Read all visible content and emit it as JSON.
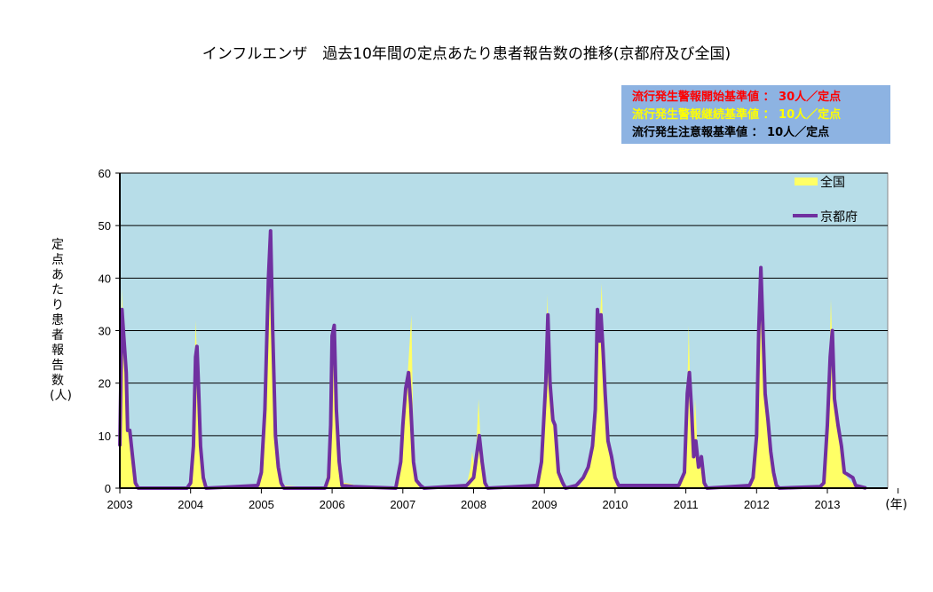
{
  "chart_data": {
    "type": "area+line",
    "title": "インフルエンザ　過去10年間の定点あたり患者報告数の推移(京都府及び全国)",
    "ylabel": "定点あたり患者報告数(人)",
    "xlabel": "(年)",
    "ylim": [
      0,
      60
    ],
    "xlim": [
      2003,
      2013.85
    ],
    "yticks": [
      "0",
      "10",
      "20",
      "30",
      "40",
      "50",
      "60"
    ],
    "xticks": [
      "2003",
      "2004",
      "2005",
      "2006",
      "2007",
      "2008",
      "2009",
      "2010",
      "2011",
      "2012",
      "2013"
    ],
    "grid": true,
    "legend_position": "top-right",
    "thresholds": [
      {
        "label": "流行発生警報開始基準値 ： 30人／定点",
        "color": "#ff0000"
      },
      {
        "label": "流行発生警報継続基準値 ： 10人／定点",
        "color": "#ffff00"
      },
      {
        "label": "流行発生注意報基準値 ： 10人／定点",
        "color": "#000000"
      }
    ],
    "series": [
      {
        "name": "全国",
        "type": "area",
        "color": "#ffff66",
        "points": [
          [
            2003,
            8
          ],
          [
            2003.03,
            38
          ],
          [
            2003.06,
            25
          ],
          [
            2003.1,
            20
          ],
          [
            2003.14,
            10
          ],
          [
            2003.18,
            4
          ],
          [
            2003.22,
            1
          ],
          [
            2003.26,
            0
          ],
          [
            2003.95,
            0
          ],
          [
            2004,
            1
          ],
          [
            2004.04,
            10
          ],
          [
            2004.07,
            32
          ],
          [
            2004.1,
            22
          ],
          [
            2004.14,
            7
          ],
          [
            2004.18,
            2
          ],
          [
            2004.22,
            0
          ],
          [
            2004.95,
            0.5
          ],
          [
            2005,
            3
          ],
          [
            2005.05,
            16
          ],
          [
            2005.1,
            42
          ],
          [
            2005.12,
            48
          ],
          [
            2005.15,
            30
          ],
          [
            2005.2,
            9
          ],
          [
            2005.24,
            3
          ],
          [
            2005.3,
            0.5
          ],
          [
            2005.9,
            0
          ],
          [
            2005.96,
            6
          ],
          [
            2006,
            28
          ],
          [
            2006.02,
            30
          ],
          [
            2006.06,
            13
          ],
          [
            2006.1,
            4
          ],
          [
            2006.14,
            1
          ],
          [
            2006.2,
            1
          ],
          [
            2006.35,
            0.5
          ],
          [
            2006.9,
            0
          ],
          [
            2006.97,
            4
          ],
          [
            2007.02,
            12
          ],
          [
            2007.06,
            20
          ],
          [
            2007.12,
            33
          ],
          [
            2007.15,
            8
          ],
          [
            2007.19,
            2
          ],
          [
            2007.25,
            0.5
          ],
          [
            2007.3,
            0
          ],
          [
            2007.9,
            0.5
          ],
          [
            2007.96,
            4
          ],
          [
            2007.98,
            7
          ],
          [
            2008.02,
            3
          ],
          [
            2008.07,
            17
          ],
          [
            2008.1,
            8
          ],
          [
            2008.14,
            4
          ],
          [
            2008.18,
            1
          ],
          [
            2008.22,
            0
          ],
          [
            2008.9,
            0.5
          ],
          [
            2008.96,
            5
          ],
          [
            2009.02,
            22
          ],
          [
            2009.04,
            37
          ],
          [
            2009.07,
            22
          ],
          [
            2009.1,
            12
          ],
          [
            2009.13,
            16
          ],
          [
            2009.17,
            6
          ],
          [
            2009.2,
            4
          ],
          [
            2009.26,
            1
          ],
          [
            2009.3,
            0
          ],
          [
            2009.5,
            0.5
          ],
          [
            2009.6,
            3
          ],
          [
            2009.68,
            8
          ],
          [
            2009.72,
            16
          ],
          [
            2009.75,
            28
          ],
          [
            2009.78,
            30
          ],
          [
            2009.81,
            39
          ],
          [
            2009.84,
            24
          ],
          [
            2009.88,
            12
          ],
          [
            2009.93,
            6
          ],
          [
            2010,
            2
          ],
          [
            2010.05,
            0.5
          ],
          [
            2010.9,
            0.5
          ],
          [
            2010.98,
            4
          ],
          [
            2011.02,
            18
          ],
          [
            2011.04,
            31
          ],
          [
            2011.07,
            14
          ],
          [
            2011.1,
            8
          ],
          [
            2011.13,
            17
          ],
          [
            2011.17,
            6
          ],
          [
            2011.22,
            4
          ],
          [
            2011.26,
            1
          ],
          [
            2011.3,
            0
          ],
          [
            2011.9,
            0.5
          ],
          [
            2011.95,
            3
          ],
          [
            2012,
            12
          ],
          [
            2012.03,
            28
          ],
          [
            2012.06,
            37
          ],
          [
            2012.09,
            28
          ],
          [
            2012.12,
            22
          ],
          [
            2012.16,
            12
          ],
          [
            2012.2,
            6
          ],
          [
            2012.24,
            2
          ],
          [
            2012.3,
            0
          ],
          [
            2012.9,
            0.3
          ],
          [
            2012.96,
            3
          ],
          [
            2013.02,
            20
          ],
          [
            2013.05,
            36
          ],
          [
            2013.08,
            22
          ],
          [
            2013.12,
            14
          ],
          [
            2013.17,
            10
          ],
          [
            2013.22,
            4
          ],
          [
            2013.28,
            2
          ],
          [
            2013.35,
            1
          ],
          [
            2013.45,
            0
          ],
          [
            2013.55,
            0
          ]
        ]
      },
      {
        "name": "京都府",
        "type": "line",
        "color": "#7030a0",
        "points": [
          [
            2003,
            8
          ],
          [
            2003.03,
            34
          ],
          [
            2003.06,
            28
          ],
          [
            2003.09,
            22
          ],
          [
            2003.11,
            11
          ],
          [
            2003.14,
            11
          ],
          [
            2003.18,
            6
          ],
          [
            2003.22,
            1
          ],
          [
            2003.26,
            0
          ],
          [
            2003.95,
            0
          ],
          [
            2004,
            1
          ],
          [
            2004.04,
            8
          ],
          [
            2004.07,
            25
          ],
          [
            2004.09,
            27
          ],
          [
            2004.11,
            20
          ],
          [
            2004.14,
            8
          ],
          [
            2004.18,
            2
          ],
          [
            2004.22,
            0
          ],
          [
            2004.95,
            0.5
          ],
          [
            2005,
            3
          ],
          [
            2005.05,
            15
          ],
          [
            2005.1,
            40
          ],
          [
            2005.13,
            49
          ],
          [
            2005.16,
            30
          ],
          [
            2005.2,
            10
          ],
          [
            2005.24,
            4
          ],
          [
            2005.28,
            1
          ],
          [
            2005.32,
            0
          ],
          [
            2005.9,
            0
          ],
          [
            2005.95,
            2
          ],
          [
            2005.98,
            12
          ],
          [
            2006,
            29
          ],
          [
            2006.03,
            31
          ],
          [
            2006.06,
            15
          ],
          [
            2006.1,
            5
          ],
          [
            2006.14,
            0.5
          ],
          [
            2006.3,
            0.3
          ],
          [
            2006.9,
            0
          ],
          [
            2006.97,
            5
          ],
          [
            2007,
            12
          ],
          [
            2007.04,
            19
          ],
          [
            2007.08,
            22
          ],
          [
            2007.11,
            16
          ],
          [
            2007.15,
            5
          ],
          [
            2007.19,
            1.5
          ],
          [
            2007.25,
            0.5
          ],
          [
            2007.3,
            0
          ],
          [
            2007.9,
            0.5
          ],
          [
            2008,
            2
          ],
          [
            2008.05,
            7
          ],
          [
            2008.08,
            10
          ],
          [
            2008.12,
            5
          ],
          [
            2008.16,
            1
          ],
          [
            2008.2,
            0
          ],
          [
            2008.9,
            0.5
          ],
          [
            2008.96,
            5
          ],
          [
            2009.02,
            20
          ],
          [
            2009.05,
            33
          ],
          [
            2009.08,
            20
          ],
          [
            2009.12,
            13
          ],
          [
            2009.15,
            12
          ],
          [
            2009.2,
            3
          ],
          [
            2009.26,
            1
          ],
          [
            2009.3,
            0
          ],
          [
            2009.45,
            0.5
          ],
          [
            2009.55,
            2
          ],
          [
            2009.62,
            4
          ],
          [
            2009.68,
            8
          ],
          [
            2009.72,
            15
          ],
          [
            2009.75,
            34
          ],
          [
            2009.78,
            28
          ],
          [
            2009.8,
            33
          ],
          [
            2009.83,
            26
          ],
          [
            2009.86,
            18
          ],
          [
            2009.9,
            9
          ],
          [
            2009.95,
            6
          ],
          [
            2010,
            2
          ],
          [
            2010.05,
            0.5
          ],
          [
            2010.9,
            0.5
          ],
          [
            2010.98,
            3
          ],
          [
            2011.02,
            18
          ],
          [
            2011.05,
            22
          ],
          [
            2011.08,
            15
          ],
          [
            2011.11,
            6
          ],
          [
            2011.14,
            9
          ],
          [
            2011.18,
            4
          ],
          [
            2011.22,
            6
          ],
          [
            2011.26,
            1
          ],
          [
            2011.3,
            0
          ],
          [
            2011.9,
            0.5
          ],
          [
            2011.95,
            2
          ],
          [
            2012,
            10
          ],
          [
            2012.03,
            30
          ],
          [
            2012.06,
            42
          ],
          [
            2012.09,
            30
          ],
          [
            2012.12,
            18
          ],
          [
            2012.16,
            13
          ],
          [
            2012.2,
            7
          ],
          [
            2012.24,
            3
          ],
          [
            2012.28,
            0.5
          ],
          [
            2012.32,
            0
          ],
          [
            2012.9,
            0.3
          ],
          [
            2012.95,
            1
          ],
          [
            2013,
            12
          ],
          [
            2013.04,
            25
          ],
          [
            2013.07,
            30
          ],
          [
            2013.1,
            17
          ],
          [
            2013.15,
            12
          ],
          [
            2013.2,
            8
          ],
          [
            2013.24,
            3
          ],
          [
            2013.3,
            2.5
          ],
          [
            2013.36,
            2
          ],
          [
            2013.4,
            0.5
          ],
          [
            2013.55,
            0
          ]
        ]
      }
    ]
  }
}
